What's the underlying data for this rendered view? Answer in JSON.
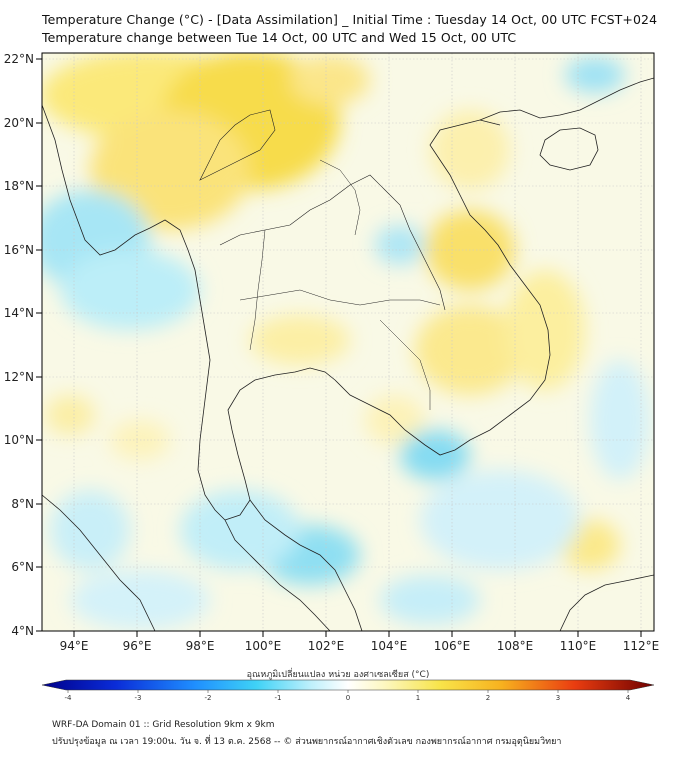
{
  "header": {
    "title_line1": "Temperature Change (°C) - [Data Assimilation] _ Initial Time : Tuesday 14 Oct, 00 UTC FCST+024",
    "title_line2": "Temperature change between Tue 14 Oct, 00 UTC and Wed 15 Oct, 00 UTC"
  },
  "map": {
    "lat_labels": [
      "22°N",
      "20°N",
      "18°N",
      "16°N",
      "14°N",
      "12°N",
      "10°N",
      "8°N",
      "6°N",
      "4°N"
    ],
    "lon_labels": [
      "94°E",
      "96°E",
      "98°E",
      "100°E",
      "102°E",
      "104°E",
      "106°E",
      "108°E",
      "110°E",
      "112°E"
    ],
    "lat_range": [
      4,
      22.2
    ],
    "lon_range": [
      93,
      112.5
    ]
  },
  "colorbar": {
    "title": "อุณหภูมิเปลี่ยนแปลง หน่วย องศาเซลเซียส (°C)",
    "ticks": [
      "-4",
      "-3",
      "-2",
      "-1",
      "0",
      "1",
      "2",
      "3",
      "4"
    ],
    "range": [
      -4,
      4
    ]
  },
  "footer": {
    "line1": "WRF-DA Domain 01 :: Grid Resolution 9km x 9km",
    "line2": "ปรับปรุงข้อมูล ณ เวลา 19:00น. วัน จ. ที่ 13 ต.ค. 2568 -- © ส่วนพยากรณ์อากาศเชิงตัวเลข กองพยากรณ์อากาศ กรมอุตุนิยมวิทยา"
  }
}
